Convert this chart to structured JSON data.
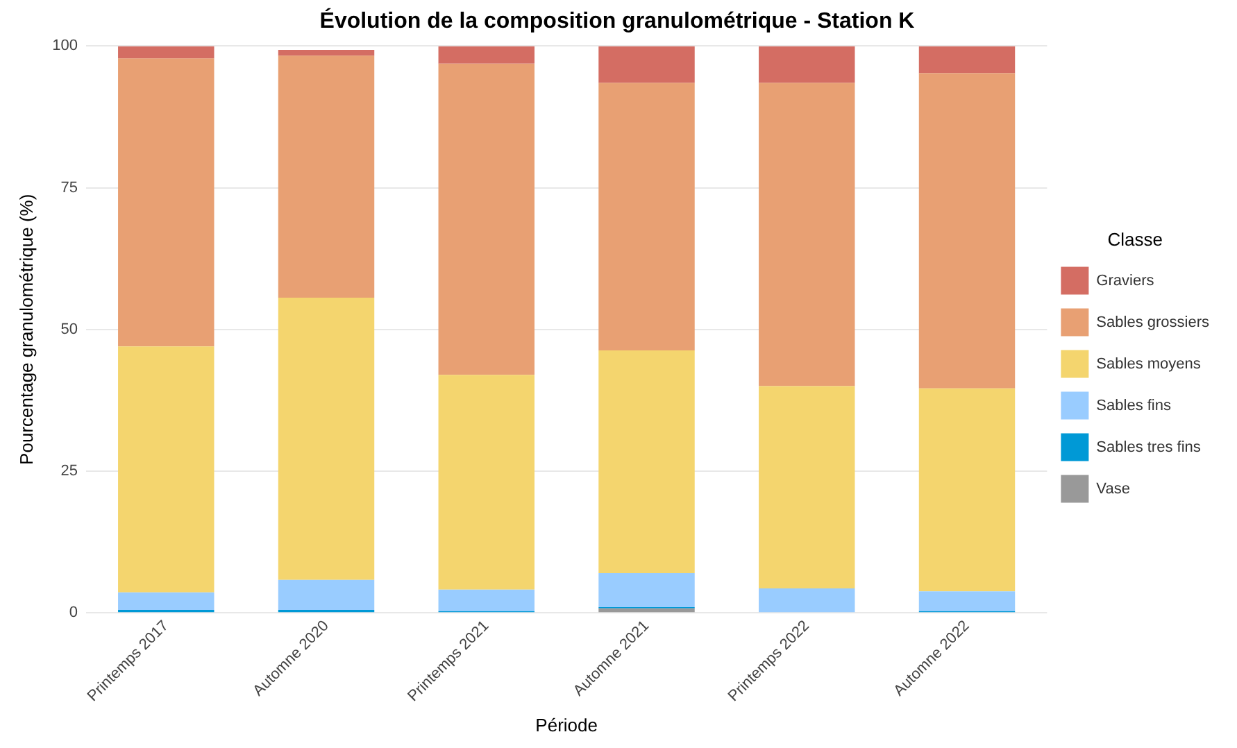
{
  "chart_data": {
    "type": "bar",
    "title": "Évolution de la composition granulométrique - Station K",
    "xlabel": "Période",
    "ylabel": "Pourcentage granulométrique (%)",
    "legend_title": "Classe",
    "categories": [
      "Printemps 2017",
      "Automne 2020",
      "Printemps 2021",
      "Automne 2021",
      "Printemps 2022",
      "Automne 2022"
    ],
    "stacked": true,
    "ylim": [
      0,
      100
    ],
    "yticks": [
      0,
      25,
      50,
      75,
      100
    ],
    "grid": "y",
    "legend": "right",
    "series": [
      {
        "name": "Vase",
        "color": "#999999",
        "values": [
          0,
          0,
          0,
          0.8,
          0,
          0
        ]
      },
      {
        "name": "Sables tres fins",
        "color": "#0099d6",
        "values": [
          0.5,
          0.5,
          0.3,
          0.2,
          null,
          0.3
        ]
      },
      {
        "name": "Sables fins",
        "color": "#99ccff",
        "values": [
          3.1,
          5.3,
          3.8,
          6.0,
          4.3,
          3.5
        ]
      },
      {
        "name": "Sables moyens",
        "color": "#f4d56e",
        "values": [
          43.4,
          49.8,
          37.9,
          39.3,
          35.7,
          35.8
        ]
      },
      {
        "name": "Sables grossiers",
        "color": "#e8a073",
        "values": [
          50.8,
          42.7,
          54.9,
          47.2,
          53.5,
          55.6
        ]
      },
      {
        "name": "Graviers",
        "color": "#d46d63",
        "values": [
          2.2,
          1.0,
          3.1,
          6.5,
          6.5,
          4.8
        ]
      }
    ]
  }
}
